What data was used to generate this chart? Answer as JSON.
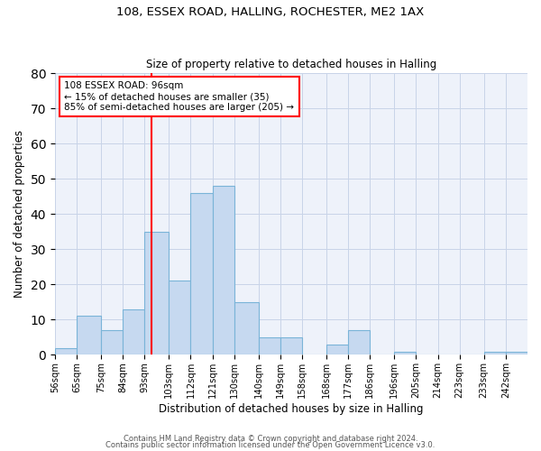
{
  "title1": "108, ESSEX ROAD, HALLING, ROCHESTER, ME2 1AX",
  "title2": "Size of property relative to detached houses in Halling",
  "xlabel": "Distribution of detached houses by size in Halling",
  "ylabel": "Number of detached properties",
  "bin_labels": [
    "56sqm",
    "65sqm",
    "75sqm",
    "84sqm",
    "93sqm",
    "103sqm",
    "112sqm",
    "121sqm",
    "130sqm",
    "140sqm",
    "149sqm",
    "158sqm",
    "168sqm",
    "177sqm",
    "186sqm",
    "196sqm",
    "205sqm",
    "214sqm",
    "223sqm",
    "233sqm",
    "242sqm"
  ],
  "bin_edges": [
    56,
    65,
    75,
    84,
    93,
    103,
    112,
    121,
    130,
    140,
    149,
    158,
    168,
    177,
    186,
    196,
    205,
    214,
    223,
    233,
    242
  ],
  "counts": [
    2,
    11,
    7,
    13,
    35,
    21,
    46,
    48,
    15,
    5,
    5,
    0,
    3,
    7,
    0,
    1,
    0,
    0,
    0,
    1,
    1
  ],
  "bar_color": "#c6d9f0",
  "bar_edge_color": "#7ab4d8",
  "red_line_x": 96,
  "ylim": [
    0,
    80
  ],
  "yticks": [
    0,
    10,
    20,
    30,
    40,
    50,
    60,
    70,
    80
  ],
  "annotation_title": "108 ESSEX ROAD: 96sqm",
  "annotation_line1": "← 15% of detached houses are smaller (35)",
  "annotation_line2": "85% of semi-detached houses are larger (205) →",
  "footer1": "Contains HM Land Registry data © Crown copyright and database right 2024.",
  "footer2": "Contains public sector information licensed under the Open Government Licence v3.0.",
  "bg_color": "#eef2fa"
}
